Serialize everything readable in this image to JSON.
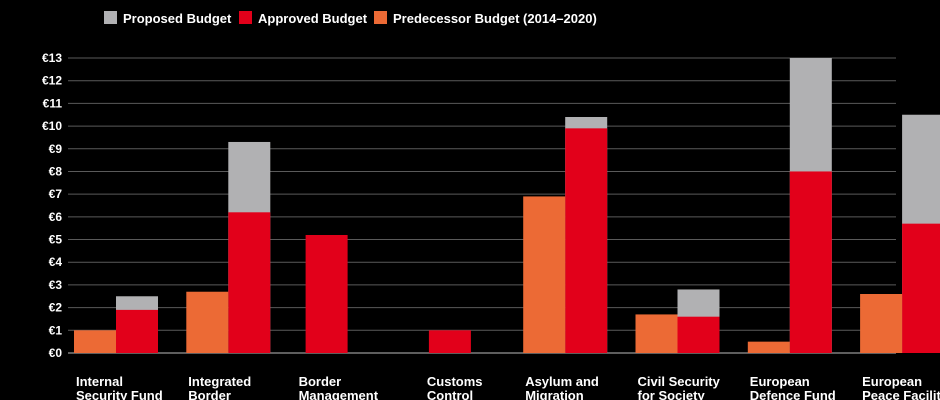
{
  "colors": {
    "proposed": "#b1b1b3",
    "approved": "#e2001a",
    "predecessor": "#ec6a35",
    "background": "#000000",
    "text": "#ffffff"
  },
  "legend": {
    "proposed": "Proposed Budget",
    "approved": "Approved Budget",
    "predecessor": "Predecessor Budget (2014–2020)"
  },
  "chart_data": {
    "type": "bar",
    "currency": "€",
    "ylim": [
      0,
      13
    ],
    "yticks": [
      "€0",
      "€1",
      "€2",
      "€3",
      "€4",
      "€5",
      "€6",
      "€7",
      "€8",
      "€9",
      "€10",
      "€11",
      "€12",
      "€13"
    ],
    "grid": true,
    "legend_position": "top-left",
    "categories": [
      [
        "Internal",
        "Security Fund"
      ],
      [
        "Integrated",
        "Border"
      ],
      [
        "Border",
        "Management"
      ],
      [
        "Customs",
        "Control"
      ],
      [
        "Asylum and",
        "Migration"
      ],
      [
        "Civil Security",
        "for Society"
      ],
      [
        "European",
        "Defence Fund"
      ],
      [
        "European",
        "Peace Facility"
      ]
    ],
    "series": [
      {
        "name": "Predecessor Budget (2014–2020)",
        "key": "predecessor",
        "values": [
          1.0,
          2.7,
          null,
          null,
          6.9,
          1.7,
          0.5,
          2.6
        ]
      },
      {
        "name": "Approved Budget",
        "key": "approved",
        "values": [
          1.9,
          6.2,
          5.2,
          1.0,
          9.9,
          1.6,
          8.0,
          5.7
        ]
      },
      {
        "name": "Proposed Budget",
        "key": "proposed",
        "values": [
          2.5,
          9.3,
          null,
          null,
          10.4,
          2.8,
          13.0,
          10.5
        ]
      }
    ]
  }
}
